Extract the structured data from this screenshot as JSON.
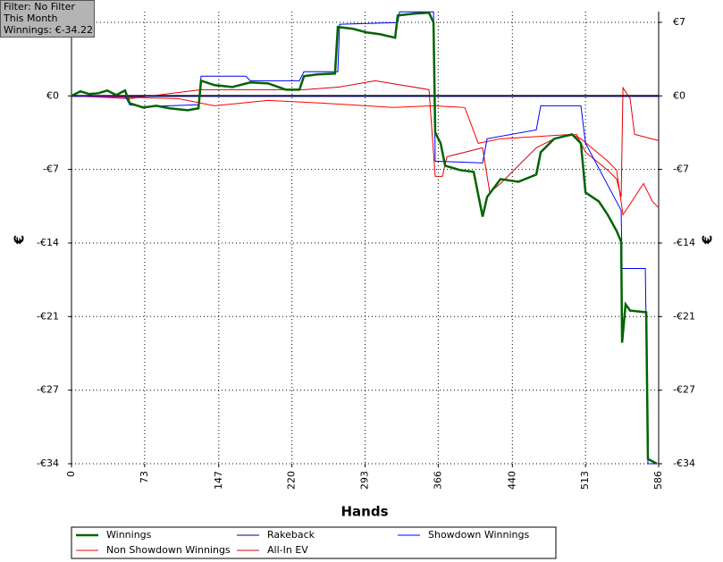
{
  "chart_data": {
    "type": "line",
    "annotations": [
      "Filter: No Filter",
      "This Month",
      "Winnings: €-34.22"
    ],
    "xlabel": "Hands",
    "ylabel": "€",
    "xlim": [
      0,
      586
    ],
    "xticks": [
      0,
      73,
      147,
      220,
      293,
      366,
      440,
      513,
      586
    ],
    "ylim": [
      -34.22,
      7.84
    ],
    "yticks": [
      {
        "value": 6.84,
        "label": "€7"
      },
      {
        "value": 0,
        "label": "€0"
      },
      {
        "value": -6.84,
        "label": "-€7"
      },
      {
        "value": -13.69,
        "label": "-€14"
      },
      {
        "value": -20.53,
        "label": "-€21"
      },
      {
        "value": -27.38,
        "label": "-€27"
      },
      {
        "value": -34.22,
        "label": "-€34"
      }
    ],
    "grid": true,
    "series": [
      {
        "name": "Winnings",
        "color": "#006400",
        "x": [
          0,
          8.9,
          17.8,
          26.8,
          35.7,
          44.6,
          53.5,
          58,
          71.4,
          84.7,
          98,
          116,
          126.7,
          129.3,
          142.7,
          160.6,
          178.4,
          196.2,
          214,
          227.5,
          232,
          245.3,
          263,
          265.8,
          281,
          294.4,
          307.7,
          323,
          325.6,
          343.4,
          356.8,
          361.3,
          363,
          368.4,
          372.9,
          388,
          401.4,
          410.3,
          414.8,
          428.2,
          446,
          463.9,
          468.3,
          481.7,
          499.5,
          508.4,
          513,
          526.3,
          535.2,
          544,
          548.6,
          549.5,
          553,
          557.5,
          573.6,
          575.3,
          584.3
        ],
        "values": [
          0,
          0.42,
          0.17,
          0.25,
          0.5,
          0.08,
          0.5,
          -0.67,
          -1.08,
          -0.92,
          -1.16,
          -1.33,
          -1.16,
          1.41,
          1,
          0.83,
          1.25,
          1.16,
          0.58,
          0.58,
          1.83,
          2,
          2.08,
          6.41,
          6.24,
          5.91,
          5.74,
          5.41,
          7.49,
          7.66,
          7.74,
          6.82,
          -3.41,
          -4.41,
          -6.49,
          -6.91,
          -7.07,
          -11.23,
          -9.4,
          -7.74,
          -7.99,
          -7.32,
          -5.24,
          -3.99,
          -3.58,
          -4.41,
          -8.99,
          -9.82,
          -11.07,
          -12.56,
          -13.56,
          -22.96,
          -19.39,
          -19.97,
          -20.13,
          -33.78,
          -34.22
        ]
      },
      {
        "name": "Rakeback",
        "color": "#000080",
        "x": [
          0,
          586
        ],
        "values": [
          0,
          0
        ]
      },
      {
        "name": "Showdown Winnings",
        "color": "#0000ff",
        "x": [
          0,
          53.5,
          58,
          71.4,
          126.7,
          129.3,
          174,
          178.4,
          227.5,
          232,
          265.8,
          267.6,
          325.6,
          327.4,
          361.3,
          363,
          410.3,
          414.8,
          463.9,
          468.3,
          508.4,
          513,
          548.6,
          549.5,
          572.7,
          575.3,
          584.3
        ],
        "values": [
          0,
          0,
          -0.83,
          -1,
          -0.83,
          1.83,
          1.83,
          1.41,
          1.41,
          2.25,
          2.25,
          6.66,
          6.82,
          7.82,
          7.82,
          -6.07,
          -6.24,
          -3.99,
          -3.16,
          -0.92,
          -0.92,
          -4.41,
          -10.65,
          -16.06,
          -16.06,
          -34.22,
          -34.22
        ]
      },
      {
        "name": "Non Showdown Winnings",
        "color": "#ff0000",
        "x": [
          0,
          106.6,
          142.7,
          196.2,
          249.8,
          321,
          361.3,
          392.5,
          405.9,
          428.2,
          499.5,
          508.4,
          535.2,
          544,
          550.4,
          570.9,
          579.8,
          586
        ],
        "values": [
          0,
          -0.25,
          -0.92,
          -0.42,
          -0.67,
          -1.08,
          -0.92,
          -1.08,
          -4.41,
          -3.99,
          -3.58,
          -3.99,
          -6.07,
          -6.91,
          -11.06,
          -8.15,
          -9.82,
          -10.4
        ]
      },
      {
        "name": "All-In EV",
        "color": "#e00000",
        "x": [
          0,
          58,
          129.3,
          232,
          267.6,
          303.3,
          356.8,
          363,
          370.2,
          374.7,
          410.3,
          417.4,
          428.2,
          463.9,
          481.7,
          504,
          513,
          535.2,
          544,
          548.6,
          550.4,
          557.5,
          562,
          586
        ],
        "values": [
          0,
          -0.25,
          0.58,
          0.58,
          0.83,
          1.41,
          0.58,
          -7.49,
          -7.49,
          -5.66,
          -4.83,
          -8.99,
          -8.15,
          -4.83,
          -3.99,
          -3.58,
          -5.24,
          -6.91,
          -7.74,
          -9.4,
          0.75,
          -0.25,
          -3.58,
          -4.16
        ]
      }
    ]
  }
}
